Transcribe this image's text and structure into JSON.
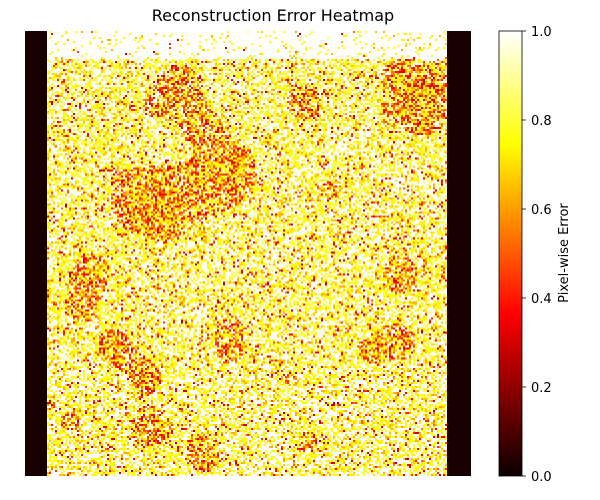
{
  "chart_data": {
    "type": "heatmap",
    "title": "Reconstruction Error Heatmap",
    "colormap": "hot",
    "vmin": 0.0,
    "vmax": 1.0,
    "colorbar": {
      "label": "Pixel-wise Error",
      "ticks": [
        "0.0",
        "0.2",
        "0.4",
        "0.6",
        "0.8",
        "1.0"
      ]
    },
    "xaxis_visible": false,
    "yaxis_visible": false,
    "notes_visible": "dark (near 0) bands at left and right edges; interior mostly high error (white/yellow) with scattered orange/red patches"
  }
}
